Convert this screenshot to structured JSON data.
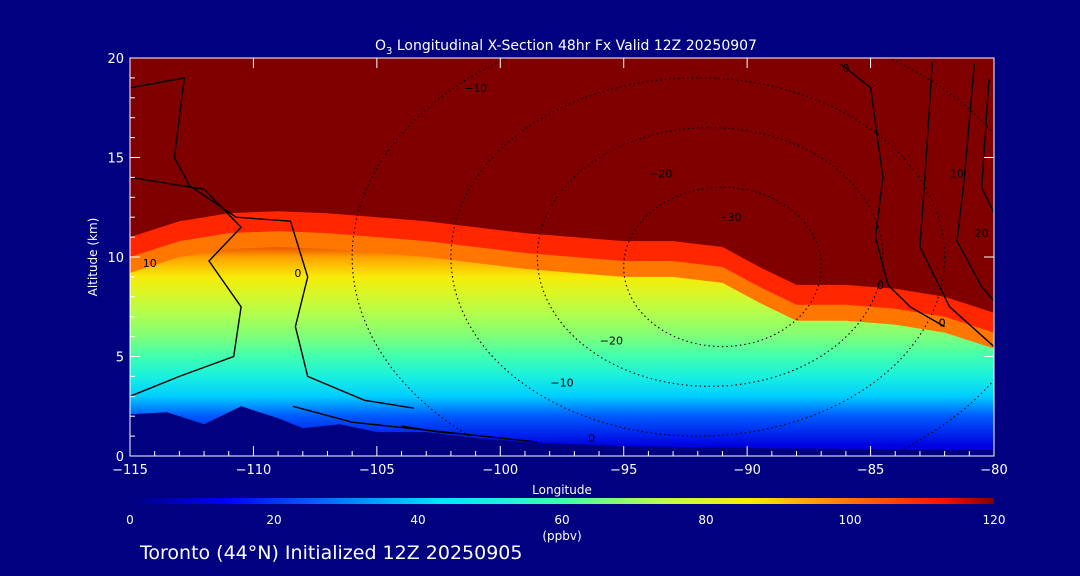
{
  "title": {
    "prefix": "O",
    "subscript": "3",
    "rest": " Longitudinal X-Section 48hr  Fx Valid 12Z 20250907"
  },
  "footer": "Toronto (44°N) Initialized 12Z 20250905",
  "chart_data": {
    "type": "heatmap",
    "xlabel": "Longitude",
    "ylabel": "Altitude (km)",
    "xlim": [
      -115,
      -80
    ],
    "ylim": [
      0,
      20
    ],
    "xticks": [
      -115,
      -110,
      -105,
      -100,
      -95,
      -90,
      -85,
      -80
    ],
    "xtick_labels": [
      "−115",
      "−110",
      "−105",
      "−100",
      "−95",
      "−90",
      "−85",
      "−80"
    ],
    "yticks": [
      0,
      5,
      10,
      15,
      20
    ],
    "ytick_labels": [
      "0",
      "5",
      "10",
      "15",
      "20"
    ],
    "colorbar": {
      "label": "(ppbv)",
      "min": 0,
      "max": 120,
      "ticks": [
        0,
        20,
        40,
        60,
        80,
        100,
        120
      ],
      "colormap": "rainbow-jet"
    },
    "ozone_boundary_120ppbv_km": {
      "lon": [
        -115,
        -113,
        -111,
        -109,
        -107,
        -105,
        -103,
        -101,
        -99,
        -97,
        -95,
        -93,
        -91,
        -89.5,
        -88,
        -86,
        -84,
        -82,
        -80
      ],
      "alt": [
        11.0,
        11.8,
        12.2,
        12.3,
        12.2,
        12.0,
        11.8,
        11.5,
        11.2,
        11.0,
        10.8,
        10.8,
        10.5,
        9.5,
        8.6,
        8.6,
        8.4,
        8.0,
        7.2
      ]
    },
    "ozone_profile_ppbv": {
      "alt_km": [
        0.5,
        2,
        3,
        4,
        5,
        6,
        7,
        8,
        9,
        10,
        11
      ],
      "value_ppbv": [
        10,
        25,
        40,
        50,
        60,
        67,
        72,
        78,
        85,
        95,
        115
      ]
    },
    "terrain_km": {
      "lon": [
        -115,
        -113.5,
        -112,
        -110.5,
        -109,
        -108,
        -106.5,
        -105,
        -103,
        -101,
        -99,
        -97,
        -95,
        -90,
        -85,
        -80
      ],
      "alt": [
        2.1,
        2.2,
        1.6,
        2.5,
        1.9,
        1.4,
        1.6,
        1.2,
        1.2,
        0.9,
        0.7,
        0.6,
        0.5,
        0.4,
        0.35,
        0.3
      ]
    },
    "contour_labels": [
      {
        "text": "−10",
        "lon": -101,
        "alt": 18.3
      },
      {
        "text": "−20",
        "lon": -93.5,
        "alt": 14.0
      },
      {
        "text": "−30",
        "lon": -90.7,
        "alt": 11.8
      },
      {
        "text": "−20",
        "lon": -95.5,
        "alt": 5.6
      },
      {
        "text": "−10",
        "lon": -97.5,
        "alt": 3.5
      },
      {
        "text": "0",
        "lon": -96.3,
        "alt": 0.7
      },
      {
        "text": "0",
        "lon": -108.2,
        "alt": 9.0
      },
      {
        "text": "10",
        "lon": -114.2,
        "alt": 9.5
      },
      {
        "text": "0",
        "lon": -86,
        "alt": 19.3
      },
      {
        "text": "0",
        "lon": -84.6,
        "alt": 8.4
      },
      {
        "text": "0",
        "lon": -82.1,
        "alt": 6.5
      },
      {
        "text": "10",
        "lon": -81.5,
        "alt": 14.0
      },
      {
        "text": "20",
        "lon": -80.5,
        "alt": 11.0
      }
    ]
  }
}
